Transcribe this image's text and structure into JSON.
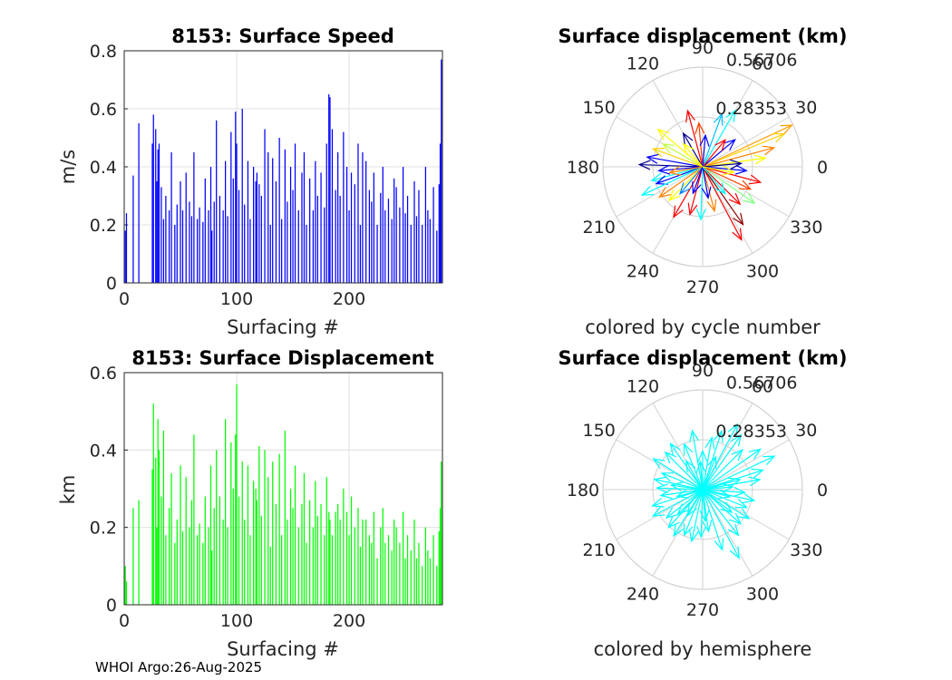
{
  "footer": "WHOI Argo:26-Aug-2025",
  "charts": {
    "speed": {
      "title": "8153: Surface Speed",
      "ylabel": "m/s",
      "xlabel": "Surfacing #",
      "xticks": [
        "0",
        "100",
        "200"
      ],
      "yticks": [
        "0",
        "0.2",
        "0.4",
        "0.6",
        "0.8"
      ]
    },
    "disp": {
      "title": "8153: Surface Displacement",
      "ylabel": "km",
      "xlabel": "Surfacing #",
      "xticks": [
        "0",
        "100",
        "200"
      ],
      "yticks": [
        "0",
        "0.2",
        "0.4",
        "0.6"
      ]
    },
    "polar_cycle": {
      "title": "Surface displacement (km)",
      "caption": "colored by cycle number",
      "ring_labels": [
        "0.28353",
        "0.56706"
      ],
      "angle_labels": [
        "0",
        "30",
        "60",
        "90",
        "120",
        "150",
        "180",
        "210",
        "240",
        "270",
        "300",
        "330"
      ]
    },
    "polar_hemi": {
      "title": "Surface displacement (km)",
      "caption": "colored by hemisphere",
      "ring_labels": [
        "0.28353",
        "0.56706"
      ],
      "angle_labels": [
        "0",
        "30",
        "60",
        "90",
        "120",
        "150",
        "180",
        "210",
        "240",
        "270",
        "300",
        "330"
      ]
    }
  },
  "chart_data": [
    {
      "type": "bar",
      "title": "8153: Surface Speed",
      "xlabel": "Surfacing #",
      "ylabel": "m/s",
      "xlim": [
        0,
        283
      ],
      "ylim": [
        0,
        0.8
      ],
      "grid": true,
      "color": "#0000ff",
      "x": [
        1,
        2,
        8,
        13,
        25,
        26,
        28,
        29,
        30,
        31,
        33,
        35,
        37,
        40,
        42,
        45,
        47,
        50,
        52,
        55,
        58,
        60,
        62,
        65,
        67,
        70,
        72,
        75,
        77,
        78,
        80,
        82,
        85,
        88,
        90,
        92,
        95,
        97,
        99,
        100,
        102,
        105,
        107,
        110,
        112,
        115,
        117,
        118,
        120,
        122,
        125,
        128,
        130,
        132,
        135,
        138,
        140,
        143,
        145,
        148,
        150,
        152,
        155,
        158,
        160,
        162,
        165,
        168,
        170,
        172,
        175,
        178,
        180,
        182,
        183,
        185,
        188,
        190,
        192,
        195,
        198,
        200,
        202,
        205,
        208,
        210,
        212,
        215,
        218,
        220,
        222,
        225,
        228,
        230,
        232,
        235,
        238,
        240,
        242,
        245,
        248,
        250,
        252,
        255,
        258,
        260,
        262,
        265,
        268,
        270,
        272,
        275,
        278,
        280,
        281,
        282
      ],
      "values": [
        0.18,
        0.24,
        0.37,
        0.55,
        0.48,
        0.58,
        0.53,
        0.35,
        0.46,
        0.48,
        0.33,
        0.22,
        0.3,
        0.25,
        0.45,
        0.2,
        0.27,
        0.35,
        0.25,
        0.38,
        0.28,
        0.23,
        0.45,
        0.22,
        0.26,
        0.21,
        0.36,
        0.25,
        0.4,
        0.18,
        0.28,
        0.56,
        0.3,
        0.25,
        0.42,
        0.23,
        0.52,
        0.36,
        0.59,
        0.48,
        0.32,
        0.6,
        0.27,
        0.42,
        0.22,
        0.4,
        0.35,
        0.38,
        0.34,
        0.3,
        0.53,
        0.45,
        0.2,
        0.43,
        0.35,
        0.5,
        0.22,
        0.46,
        0.28,
        0.4,
        0.32,
        0.48,
        0.25,
        0.38,
        0.45,
        0.2,
        0.36,
        0.25,
        0.42,
        0.3,
        0.38,
        0.26,
        0.48,
        0.65,
        0.64,
        0.53,
        0.32,
        0.45,
        0.3,
        0.52,
        0.4,
        0.25,
        0.38,
        0.34,
        0.48,
        0.2,
        0.45,
        0.42,
        0.32,
        0.28,
        0.38,
        0.2,
        0.31,
        0.4,
        0.25,
        0.29,
        0.22,
        0.36,
        0.33,
        0.26,
        0.4,
        0.24,
        0.3,
        0.2,
        0.35,
        0.23,
        0.32,
        0.2,
        0.4,
        0.25,
        0.22,
        0.33,
        0.18,
        0.34,
        0.48,
        0.77
      ]
    },
    {
      "type": "bar",
      "title": "8153: Surface Displacement",
      "xlabel": "Surfacing #",
      "ylabel": "km",
      "xlim": [
        0,
        283
      ],
      "ylim": [
        0,
        0.6
      ],
      "grid": true,
      "color": "#00ff00",
      "x": [
        1,
        2,
        8,
        13,
        25,
        26,
        28,
        29,
        30,
        31,
        33,
        35,
        37,
        40,
        42,
        45,
        47,
        50,
        52,
        55,
        58,
        60,
        62,
        65,
        67,
        70,
        72,
        75,
        77,
        78,
        80,
        82,
        85,
        88,
        90,
        92,
        95,
        97,
        99,
        100,
        102,
        105,
        107,
        110,
        112,
        115,
        117,
        118,
        120,
        122,
        125,
        128,
        130,
        132,
        135,
        138,
        140,
        143,
        145,
        148,
        150,
        152,
        155,
        158,
        160,
        162,
        165,
        168,
        170,
        172,
        175,
        178,
        180,
        182,
        183,
        185,
        188,
        190,
        192,
        195,
        198,
        200,
        202,
        205,
        208,
        210,
        212,
        215,
        218,
        220,
        222,
        225,
        228,
        230,
        232,
        235,
        238,
        240,
        242,
        245,
        248,
        250,
        252,
        255,
        258,
        260,
        262,
        265,
        268,
        270,
        272,
        275,
        278,
        280,
        281,
        282
      ],
      "values": [
        0.1,
        0.06,
        0.25,
        0.27,
        0.35,
        0.52,
        0.38,
        0.2,
        0.48,
        0.4,
        0.28,
        0.45,
        0.18,
        0.25,
        0.34,
        0.16,
        0.22,
        0.36,
        0.19,
        0.33,
        0.2,
        0.27,
        0.44,
        0.18,
        0.21,
        0.16,
        0.28,
        0.2,
        0.36,
        0.14,
        0.25,
        0.4,
        0.28,
        0.22,
        0.48,
        0.2,
        0.42,
        0.3,
        0.44,
        0.57,
        0.28,
        0.37,
        0.22,
        0.36,
        0.18,
        0.32,
        0.3,
        0.27,
        0.41,
        0.23,
        0.4,
        0.33,
        0.15,
        0.37,
        0.26,
        0.39,
        0.18,
        0.45,
        0.22,
        0.3,
        0.25,
        0.36,
        0.2,
        0.26,
        0.34,
        0.16,
        0.27,
        0.2,
        0.32,
        0.23,
        0.26,
        0.18,
        0.33,
        0.24,
        0.22,
        0.18,
        0.24,
        0.26,
        0.22,
        0.3,
        0.24,
        0.18,
        0.28,
        0.2,
        0.25,
        0.15,
        0.22,
        0.22,
        0.18,
        0.16,
        0.24,
        0.12,
        0.2,
        0.25,
        0.16,
        0.18,
        0.14,
        0.22,
        0.2,
        0.16,
        0.24,
        0.12,
        0.18,
        0.14,
        0.22,
        0.12,
        0.16,
        0.1,
        0.2,
        0.14,
        0.12,
        0.18,
        0.1,
        0.19,
        0.25,
        0.37
      ]
    },
    {
      "type": "polar-vectors",
      "title": "Surface displacement (km)",
      "caption": "colored by cycle number",
      "rmax": 0.56706,
      "rings": [
        0.28353,
        0.56706
      ],
      "palette": [
        "#00008b",
        "#0000ff",
        "#0080ff",
        "#00ffff",
        "#80ff80",
        "#ffff00",
        "#ff8000",
        "#ff0000",
        "#8b0000"
      ],
      "vectors": [
        {
          "angle": 25,
          "r": 0.56,
          "color": "#ffa000"
        },
        {
          "angle": 22,
          "r": 0.5,
          "color": "#ffd000"
        },
        {
          "angle": 15,
          "r": 0.42,
          "color": "#ff8000"
        },
        {
          "angle": 8,
          "r": 0.36,
          "color": "#ffff00"
        },
        {
          "angle": 60,
          "r": 0.37,
          "color": "#00ffff"
        },
        {
          "angle": 70,
          "r": 0.32,
          "color": "#00c0ff"
        },
        {
          "angle": 105,
          "r": 0.33,
          "color": "#ff0000"
        },
        {
          "angle": 95,
          "r": 0.25,
          "color": "#ff4000"
        },
        {
          "angle": 140,
          "r": 0.33,
          "color": "#ffff00"
        },
        {
          "angle": 150,
          "r": 0.26,
          "color": "#c0ff40"
        },
        {
          "angle": 170,
          "r": 0.32,
          "color": "#0000ff"
        },
        {
          "angle": 178,
          "r": 0.36,
          "color": "#00008b"
        },
        {
          "angle": 185,
          "r": 0.25,
          "color": "#0000ff"
        },
        {
          "angle": 195,
          "r": 0.3,
          "color": "#00ffff"
        },
        {
          "angle": 200,
          "r": 0.28,
          "color": "#0000ff"
        },
        {
          "angle": 205,
          "r": 0.38,
          "color": "#00ffff"
        },
        {
          "angle": 215,
          "r": 0.3,
          "color": "#ff8000"
        },
        {
          "angle": 225,
          "r": 0.27,
          "color": "#ffff00"
        },
        {
          "angle": 240,
          "r": 0.33,
          "color": "#ff0000"
        },
        {
          "angle": 255,
          "r": 0.28,
          "color": "#ff0000"
        },
        {
          "angle": 268,
          "r": 0.3,
          "color": "#00ffff"
        },
        {
          "angle": 285,
          "r": 0.26,
          "color": "#ff8000"
        },
        {
          "angle": 298,
          "r": 0.47,
          "color": "#ff0000"
        },
        {
          "angle": 305,
          "r": 0.4,
          "color": "#8b0000"
        },
        {
          "angle": 315,
          "r": 0.3,
          "color": "#ff0000"
        },
        {
          "angle": 325,
          "r": 0.36,
          "color": "#80ff80"
        },
        {
          "angle": 335,
          "r": 0.3,
          "color": "#ff4000"
        },
        {
          "angle": 345,
          "r": 0.34,
          "color": "#ff0000"
        },
        {
          "angle": 355,
          "r": 0.25,
          "color": "#0000ff"
        },
        {
          "angle": 40,
          "r": 0.24,
          "color": "#0000ff"
        },
        {
          "angle": 120,
          "r": 0.22,
          "color": "#00008b"
        },
        {
          "angle": 160,
          "r": 0.3,
          "color": "#ffd000"
        },
        {
          "angle": 230,
          "r": 0.2,
          "color": "#0080ff"
        },
        {
          "angle": 280,
          "r": 0.18,
          "color": "#0000ff"
        },
        {
          "angle": 5,
          "r": 0.22,
          "color": "#00008b"
        },
        {
          "angle": 50,
          "r": 0.2,
          "color": "#ff0000"
        },
        {
          "angle": 85,
          "r": 0.18,
          "color": "#0000ff"
        },
        {
          "angle": 130,
          "r": 0.17,
          "color": "#ffff00"
        },
        {
          "angle": 190,
          "r": 0.19,
          "color": "#ff8000"
        },
        {
          "angle": 250,
          "r": 0.16,
          "color": "#0000ff"
        },
        {
          "angle": 310,
          "r": 0.2,
          "color": "#00ffff"
        },
        {
          "angle": 350,
          "r": 0.18,
          "color": "#ffff00"
        }
      ]
    },
    {
      "type": "polar-vectors",
      "title": "Surface displacement (km)",
      "caption": "colored by hemisphere",
      "rmax": 0.56706,
      "rings": [
        0.28353,
        0.56706
      ],
      "color": "#00ffff",
      "vectors": [
        {
          "angle": 25,
          "r": 0.45
        },
        {
          "angle": 18,
          "r": 0.36
        },
        {
          "angle": 10,
          "r": 0.33
        },
        {
          "angle": 35,
          "r": 0.4
        },
        {
          "angle": 45,
          "r": 0.32
        },
        {
          "angle": 55,
          "r": 0.38
        },
        {
          "angle": 62,
          "r": 0.42
        },
        {
          "angle": 72,
          "r": 0.35
        },
        {
          "angle": 80,
          "r": 0.3
        },
        {
          "angle": 90,
          "r": 0.22
        },
        {
          "angle": 100,
          "r": 0.34
        },
        {
          "angle": 112,
          "r": 0.28
        },
        {
          "angle": 125,
          "r": 0.32
        },
        {
          "angle": 135,
          "r": 0.3
        },
        {
          "angle": 148,
          "r": 0.33
        },
        {
          "angle": 158,
          "r": 0.25
        },
        {
          "angle": 168,
          "r": 0.28
        },
        {
          "angle": 178,
          "r": 0.26
        },
        {
          "angle": 188,
          "r": 0.24
        },
        {
          "angle": 198,
          "r": 0.3
        },
        {
          "angle": 208,
          "r": 0.32
        },
        {
          "angle": 218,
          "r": 0.26
        },
        {
          "angle": 228,
          "r": 0.29
        },
        {
          "angle": 238,
          "r": 0.31
        },
        {
          "angle": 248,
          "r": 0.28
        },
        {
          "angle": 258,
          "r": 0.3
        },
        {
          "angle": 268,
          "r": 0.27
        },
        {
          "angle": 278,
          "r": 0.24
        },
        {
          "angle": 288,
          "r": 0.36
        },
        {
          "angle": 298,
          "r": 0.44
        },
        {
          "angle": 308,
          "r": 0.33
        },
        {
          "angle": 318,
          "r": 0.29
        },
        {
          "angle": 328,
          "r": 0.31
        },
        {
          "angle": 338,
          "r": 0.27
        },
        {
          "angle": 348,
          "r": 0.3
        },
        {
          "angle": 356,
          "r": 0.24
        },
        {
          "angle": 15,
          "r": 0.22
        },
        {
          "angle": 68,
          "r": 0.2
        },
        {
          "angle": 120,
          "r": 0.19
        },
        {
          "angle": 172,
          "r": 0.18
        },
        {
          "angle": 225,
          "r": 0.2
        },
        {
          "angle": 275,
          "r": 0.18
        },
        {
          "angle": 322,
          "r": 0.21
        },
        {
          "angle": 5,
          "r": 0.17
        },
        {
          "angle": 95,
          "r": 0.16
        },
        {
          "angle": 195,
          "r": 0.15
        },
        {
          "angle": 240,
          "r": 0.17
        },
        {
          "angle": 345,
          "r": 0.16
        }
      ]
    }
  ]
}
